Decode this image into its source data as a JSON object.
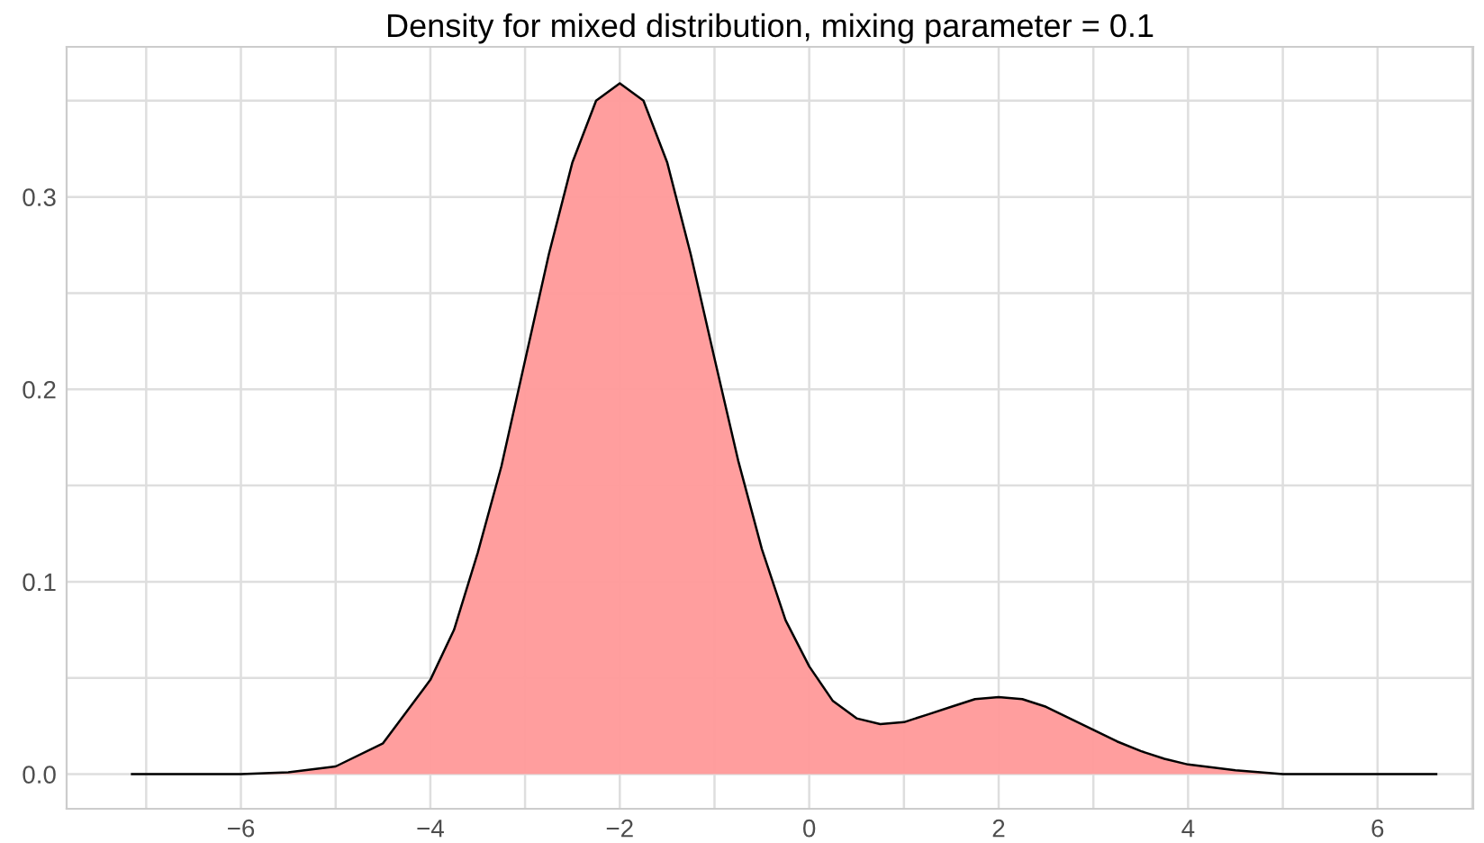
{
  "chart_data": {
    "type": "area",
    "title": "Density for mixed distribution, mixing parameter = 0.1",
    "x": [
      -7.15,
      -6.5,
      -6,
      -5.5,
      -5,
      -4.5,
      -4,
      -3.75,
      -3.5,
      -3.25,
      -3,
      -2.75,
      -2.5,
      -2.25,
      -2,
      -1.75,
      -1.5,
      -1.25,
      -1,
      -0.75,
      -0.5,
      -0.25,
      0,
      0.25,
      0.5,
      0.75,
      1,
      1.25,
      1.5,
      1.75,
      2,
      2.25,
      2.5,
      2.75,
      3,
      3.25,
      3.5,
      3.75,
      4,
      4.5,
      5,
      5.5,
      6,
      6.62
    ],
    "series": [
      {
        "color": "#ff9999",
        "values": [
          0,
          0,
          0,
          0.001,
          0.004,
          0.016,
          0.049,
          0.075,
          0.115,
          0.16,
          0.215,
          0.27,
          0.318,
          0.35,
          0.359,
          0.35,
          0.318,
          0.27,
          0.216,
          0.163,
          0.117,
          0.08,
          0.056,
          0.038,
          0.029,
          0.026,
          0.027,
          0.031,
          0.035,
          0.039,
          0.04,
          0.039,
          0.035,
          0.029,
          0.023,
          0.017,
          0.012,
          0.008,
          0.005,
          0.002,
          0,
          0,
          0,
          0
        ]
      }
    ],
    "xlim": [
      -7.84,
      7.01
    ],
    "ylim": [
      -0.018,
      0.378
    ],
    "xticks": [
      {
        "value": -7,
        "label": null
      },
      -6,
      {
        "value": -5,
        "label": null
      },
      -4,
      {
        "value": -3,
        "label": null
      },
      -2,
      {
        "value": -1,
        "label": null
      },
      0,
      {
        "value": 1,
        "label": null
      },
      2,
      {
        "value": 3,
        "label": null
      },
      4,
      {
        "value": 5,
        "label": null
      },
      6,
      {
        "value": 7,
        "label": null
      }
    ],
    "yticks": [
      {
        "value": 0,
        "label": "0.0"
      },
      {
        "value": 0.05,
        "label": null
      },
      0.1,
      {
        "value": 0.15,
        "label": null
      },
      0.2,
      {
        "value": 0.25,
        "label": null
      },
      0.3,
      {
        "value": 0.35,
        "label": null
      }
    ],
    "grid": true
  }
}
